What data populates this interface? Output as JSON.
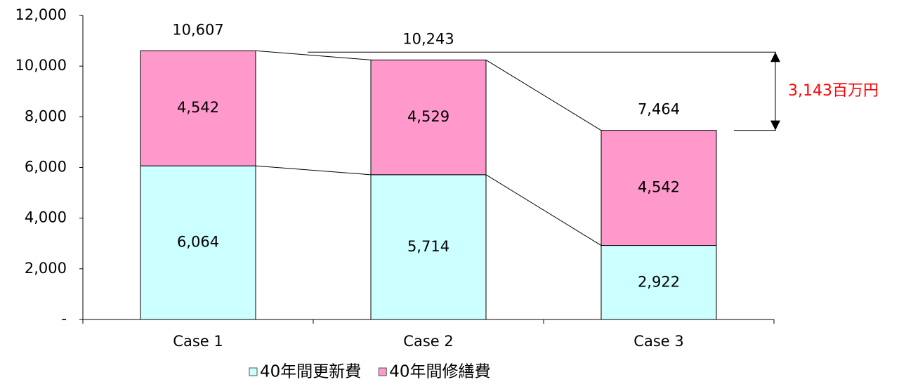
{
  "chart_data": {
    "type": "stacked_bar",
    "categories": [
      "Case 1",
      "Case 2",
      "Case 3"
    ],
    "series": [
      {
        "name": "40年間更新費",
        "color": "#ccffff",
        "values": [
          6064,
          5714,
          2922
        ],
        "value_labels": [
          "6,064",
          "5,714",
          "2,922"
        ]
      },
      {
        "name": "40年間修繕費",
        "color": "#ff99cc",
        "values": [
          4542,
          4529,
          4542
        ],
        "value_labels": [
          "4,542",
          "4,529",
          "4,542"
        ]
      }
    ],
    "totals": [
      10607,
      10243,
      7464
    ],
    "total_labels": [
      "10,607",
      "10,243",
      "7,464"
    ],
    "annotation": "3,143百万円",
    "ylim": [
      0,
      12000
    ],
    "yticks": [
      {
        "value": 0,
        "label": "-"
      },
      {
        "value": 2000,
        "label": "2,000"
      },
      {
        "value": 4000,
        "label": "4,000"
      },
      {
        "value": 6000,
        "label": "6,000"
      },
      {
        "value": 8000,
        "label": "8,000"
      },
      {
        "value": 10000,
        "label": "10,000"
      },
      {
        "value": 12000,
        "label": "12,000"
      }
    ]
  }
}
